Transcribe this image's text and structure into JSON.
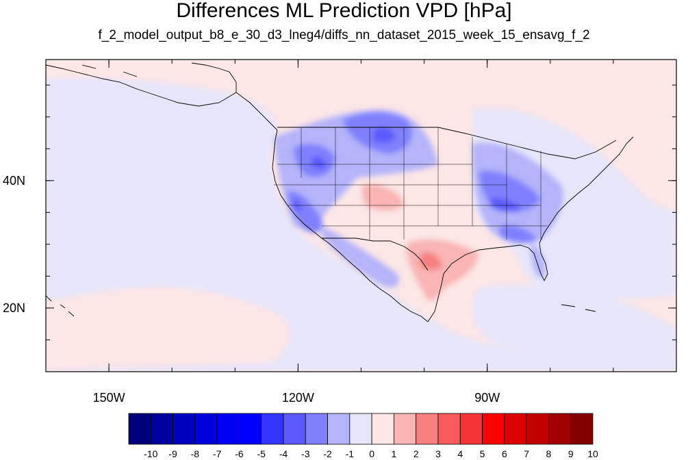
{
  "chart_data": {
    "type": "heatmap",
    "title": "Differences ML Prediction VPD [hPa]",
    "subtitle": "f_2_model_output_b8_e_30_d3_lneg4/diffs_nn_dataset_2015_week_15_ensavg_f_2",
    "x_tick_labels": [
      "150W",
      "120W",
      "90W"
    ],
    "y_tick_labels": [
      "40N",
      "20N"
    ],
    "x_ticks_lon": [
      -150,
      -120,
      -90
    ],
    "y_ticks_lat": [
      40,
      20
    ],
    "lon_range": [
      -160,
      -60
    ],
    "lat_range": [
      10,
      59
    ],
    "colorbar": {
      "labels": [
        "-10",
        "-9",
        "-8",
        "-7",
        "-6",
        "-5",
        "-4",
        "-3",
        "-2",
        "-1",
        "0",
        "1",
        "2",
        "3",
        "4",
        "5",
        "6",
        "7",
        "8",
        "9",
        "10"
      ],
      "colors": [
        "#00007a",
        "#0000a0",
        "#0000c2",
        "#0000dd",
        "#0000f2",
        "#0000ff",
        "#3535ff",
        "#5a5aff",
        "#8080ff",
        "#b4b4fa",
        "#e6e6fa",
        "#fce6e6",
        "#fab4b4",
        "#f78080",
        "#f75a5a",
        "#f53535",
        "#ff0000",
        "#dc0000",
        "#c20000",
        "#a00000",
        "#800000"
      ]
    },
    "field": {
      "background_positive_color": "#fce6e6",
      "background_negative_color": "#e6e6fa"
    }
  }
}
